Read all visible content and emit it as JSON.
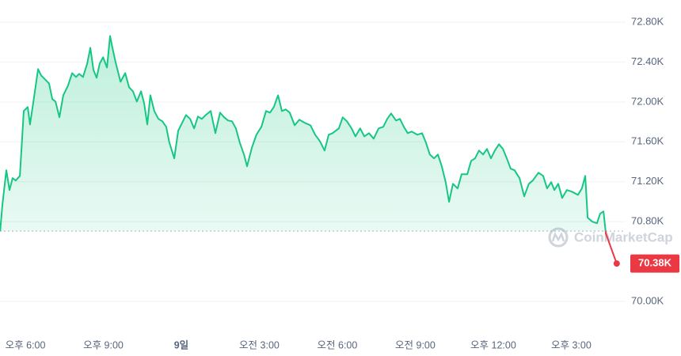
{
  "chart_data": {
    "type": "line",
    "x": [
      -0.97,
      -0.88,
      -0.73,
      -0.61,
      -0.49,
      -0.37,
      -0.21,
      -0.06,
      0.09,
      0.18,
      0.3,
      0.49,
      0.61,
      0.76,
      0.91,
      1.04,
      1.16,
      1.31,
      1.46,
      1.64,
      1.8,
      1.95,
      2.07,
      2.22,
      2.38,
      2.5,
      2.62,
      2.74,
      2.86,
      2.99,
      3.14,
      3.26,
      3.35,
      3.47,
      3.66,
      3.84,
      3.99,
      4.14,
      4.29,
      4.45,
      4.57,
      4.69,
      4.81,
      4.96,
      5.12,
      5.27,
      5.42,
      5.54,
      5.73,
      5.88,
      6.03,
      6.18,
      6.34,
      6.49,
      6.64,
      6.79,
      6.94,
      7.13,
      7.31,
      7.49,
      7.65,
      7.8,
      7.95,
      8.1,
      8.25,
      8.41,
      8.53,
      8.71,
      8.89,
      9.08,
      9.26,
      9.41,
      9.56,
      9.72,
      9.87,
      10.02,
      10.17,
      10.36,
      10.54,
      10.75,
      10.97,
      11.15,
      11.33,
      11.51,
      11.67,
      11.82,
      12.06,
      12.21,
      12.37,
      12.55,
      12.7,
      12.88,
      13.04,
      13.22,
      13.4,
      13.59,
      13.77,
      13.92,
      14.07,
      14.26,
      14.41,
      14.56,
      14.71,
      14.86,
      15.08,
      15.26,
      15.41,
      15.56,
      15.72,
      15.87,
      16.02,
      16.17,
      16.3,
      16.45,
      16.63,
      16.78,
      17.0,
      17.15,
      17.3,
      17.45,
      17.61,
      17.76,
      17.91,
      18.06,
      18.22,
      18.37,
      18.52,
      18.67,
      18.82,
      19.01,
      19.19,
      19.37,
      19.52,
      19.74,
      19.92,
      20.07,
      20.23,
      20.35,
      20.5,
      20.65,
      20.83,
      21.02,
      21.26,
      21.41,
      21.54,
      21.63,
      21.81,
      21.99,
      22.11,
      22.24,
      22.33,
      22.75
    ],
    "values": [
      70705,
      70974,
      71315,
      71117,
      71236,
      71212,
      71259,
      71909,
      71949,
      71774,
      71988,
      72329,
      72265,
      72226,
      72186,
      72028,
      72004,
      71846,
      72067,
      72162,
      72289,
      72250,
      72281,
      72250,
      72384,
      72543,
      72321,
      72242,
      72384,
      72448,
      72345,
      72661,
      72543,
      72400,
      72202,
      72289,
      72147,
      72107,
      72004,
      72107,
      71988,
      71774,
      72067,
      71909,
      71830,
      71806,
      71751,
      71592,
      71434,
      71711,
      71790,
      71869,
      71830,
      71735,
      71854,
      71830,
      71869,
      71909,
      71687,
      71893,
      71846,
      71814,
      71806,
      71735,
      71592,
      71473,
      71355,
      71537,
      71671,
      71751,
      71909,
      71893,
      71949,
      72067,
      71909,
      71925,
      71893,
      71766,
      71822,
      71790,
      71766,
      71671,
      71608,
      71513,
      71671,
      71687,
      71735,
      71846,
      71806,
      71735,
      71655,
      71735,
      71655,
      71687,
      71632,
      71735,
      71751,
      71830,
      71885,
      71814,
      71830,
      71751,
      71687,
      71703,
      71671,
      71687,
      71592,
      71473,
      71434,
      71473,
      71355,
      71196,
      70998,
      71180,
      71133,
      71275,
      71275,
      71410,
      71434,
      71513,
      71473,
      71529,
      71434,
      71513,
      71576,
      71529,
      71434,
      71331,
      71315,
      71236,
      71054,
      71180,
      71212,
      71291,
      71259,
      71133,
      71196,
      71117,
      71180,
      71038,
      71117,
      71101,
      71069,
      71133,
      71259,
      70840,
      70800,
      70784,
      70879,
      70903,
      70681,
      70380
    ],
    "color": "#16c784",
    "below_color": "#ea3943",
    "reference_value": 70705,
    "last_price": {
      "value": 70380,
      "label": "70.38K"
    },
    "xlim": [
      -0.975,
      23.09
    ],
    "xticks": [
      {
        "value": 0,
        "label": "오후 6:00"
      },
      {
        "value": 3,
        "label": "오후 9:00"
      },
      {
        "value": 6,
        "label": "9일"
      },
      {
        "value": 9,
        "label": "오전 3:00"
      },
      {
        "value": 12,
        "label": "오전 6:00"
      },
      {
        "value": 15,
        "label": "오전 9:00"
      },
      {
        "value": 18,
        "label": "오후 12:00"
      },
      {
        "value": 21,
        "label": "오후 3:00"
      }
    ],
    "ylim": [
      69691,
      73022
    ],
    "yticks": [
      {
        "value": 70000,
        "label": "70.00K"
      },
      {
        "value": 70800,
        "label": "70.80K"
      },
      {
        "value": 71200,
        "label": "71.20K"
      },
      {
        "value": 71600,
        "label": "71.60K"
      },
      {
        "value": 72000,
        "label": "72.00K"
      },
      {
        "value": 72400,
        "label": "72.40K"
      },
      {
        "value": 72800,
        "label": "72.80K"
      }
    ],
    "grid": true,
    "watermark": "CoinMarketCap"
  }
}
